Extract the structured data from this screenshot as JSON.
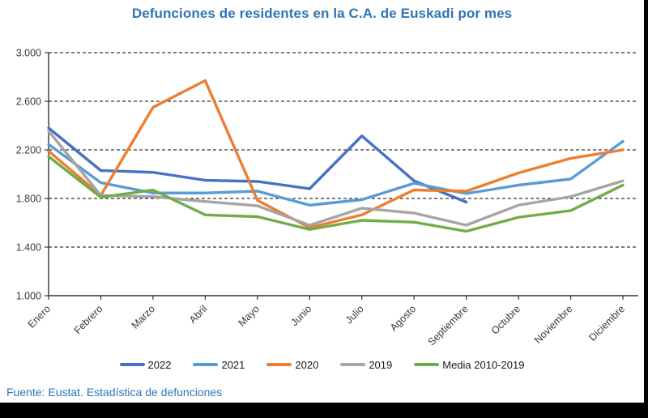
{
  "page": {
    "title": "Defunciones de residentes en la C.A. de Euskadi por mes",
    "source_note": "Fuente: Eustat. Estadística de defunciones",
    "colors": {
      "title_text": "#2E75B6",
      "source_text": "#2E75B6",
      "axis_text": "#3a3a3a",
      "axis_line": "#333333",
      "gridline": "#000000",
      "background": "#ffffff",
      "frame": "#000000"
    }
  },
  "chart_data": {
    "type": "line",
    "title": "Defunciones de residentes en la C.A. de Euskadi por mes",
    "xlabel": "",
    "ylabel": "",
    "categories": [
      "Enero",
      "Febrero",
      "Marzo",
      "Abril",
      "Mayo",
      "Junio",
      "Julio",
      "Agosto",
      "Septiembre",
      "Octubre",
      "Noviembre",
      "Diciembre"
    ],
    "series": [
      {
        "name": "2022",
        "color": "#4472C4",
        "values": [
          2380,
          2030,
          2015,
          1950,
          1940,
          1880,
          2315,
          1945,
          1770,
          null,
          null,
          null
        ]
      },
      {
        "name": "2021",
        "color": "#5B9BD5",
        "values": [
          2245,
          1930,
          1845,
          1845,
          1860,
          1745,
          1790,
          1925,
          1840,
          1910,
          1960,
          2270
        ]
      },
      {
        "name": "2020",
        "color": "#ED7D31",
        "values": [
          2190,
          1825,
          2550,
          2770,
          1785,
          1560,
          1665,
          1870,
          1860,
          2010,
          2130,
          2200
        ]
      },
      {
        "name": "2019",
        "color": "#A5A5A5",
        "values": [
          2355,
          1825,
          1815,
          1775,
          1740,
          1580,
          1720,
          1680,
          1580,
          1745,
          1815,
          1945
        ]
      },
      {
        "name": "Media 2010-2019",
        "color": "#70AD47",
        "values": [
          2145,
          1810,
          1870,
          1665,
          1650,
          1545,
          1620,
          1605,
          1530,
          1645,
          1700,
          1910
        ]
      }
    ],
    "ylim": [
      1000,
      3000
    ],
    "y_ticks": [
      1000,
      1400,
      1800,
      2200,
      2600,
      3000
    ],
    "y_tick_labels": [
      "1.000",
      "1.400",
      "1.800",
      "2.200",
      "2.600",
      "3.000"
    ],
    "grid": "horizontal-dashed",
    "legend_position": "bottom"
  }
}
